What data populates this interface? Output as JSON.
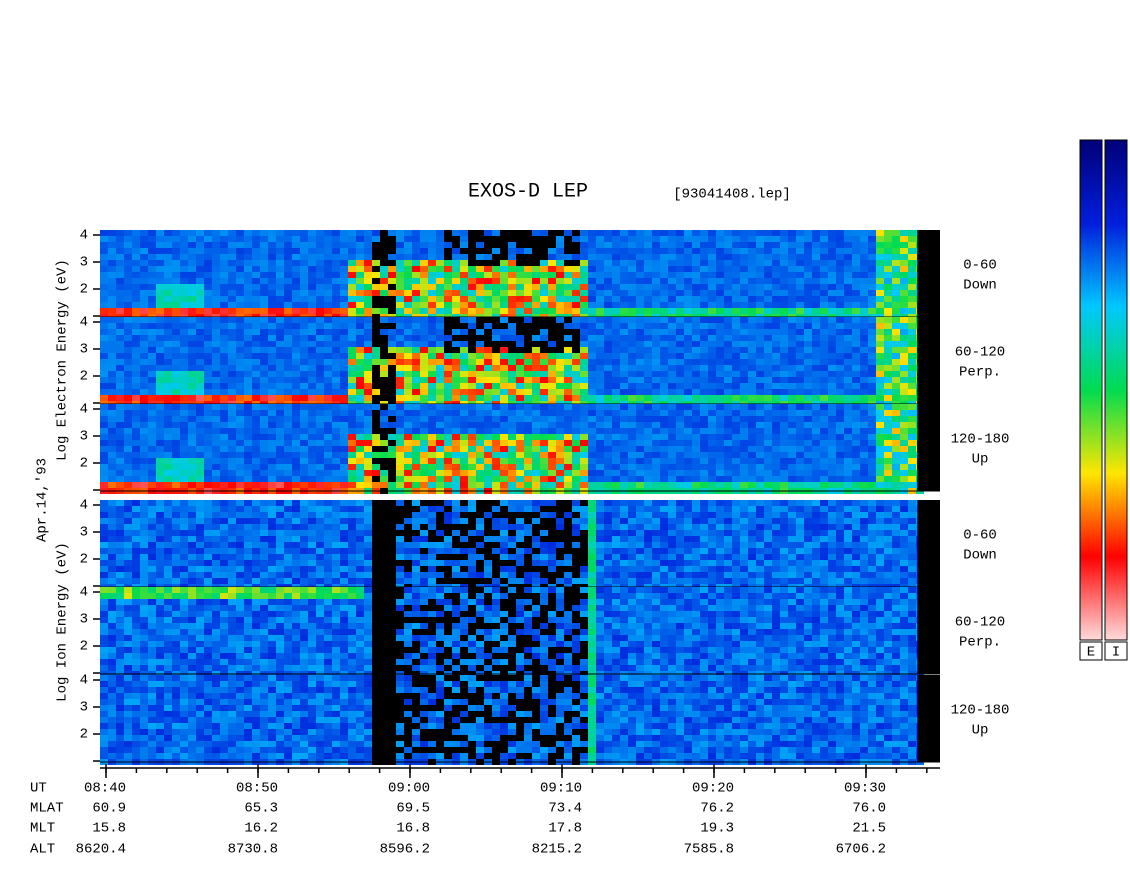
{
  "header": {
    "title": "EXOS-D LEP",
    "file": "[93041408.lep]"
  },
  "date": "Apr.14,'93",
  "groups": [
    {
      "label": "Log  Electron  Energy (eV)",
      "kind": "electron"
    },
    {
      "label": "Log  Ion  Energy (eV)",
      "kind": "ion"
    }
  ],
  "panels": [
    {
      "range": "0-60",
      "direction": "Down"
    },
    {
      "range": "60-120",
      "direction": "Perp."
    },
    {
      "range": "120-180",
      "direction": "Up"
    }
  ],
  "energy_ticks": [
    "2",
    "3",
    "4"
  ],
  "ephemeris": [
    {
      "name": "UT",
      "values": [
        "08:40",
        "08:50",
        "09:00",
        "09:10",
        "09:20",
        "09:30"
      ]
    },
    {
      "name": "MLAT",
      "values": [
        "60.9",
        "65.3",
        "69.5",
        "73.4",
        "76.2",
        "76.0"
      ]
    },
    {
      "name": "MLT",
      "values": [
        "15.8",
        "16.2",
        "16.8",
        "17.8",
        "19.3",
        "21.5"
      ]
    },
    {
      "name": "ALT",
      "values": [
        "8620.4",
        "8730.8",
        "8596.2",
        "8215.2",
        "7585.8",
        "6706.2"
      ]
    }
  ],
  "colorbar": {
    "labels": [
      "E",
      "I"
    ]
  }
}
